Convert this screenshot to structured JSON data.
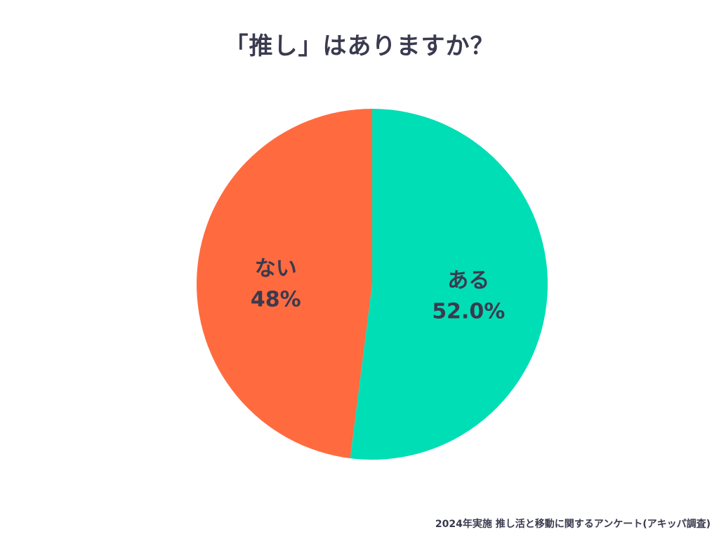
{
  "chart_data": {
    "type": "pie",
    "title": "「推し」はありますか？",
    "slices": [
      {
        "label": "ある",
        "value": 52.0,
        "display_value": "52.0%",
        "color": "#00DEB5"
      },
      {
        "label": "ない",
        "value": 48.0,
        "display_value": "48%",
        "color": "#FF6B3F"
      }
    ],
    "start_angle_deg": 0,
    "direction": "clockwise",
    "legend": "none"
  },
  "source_note": "2024年実施 推し活と移動に関するアンケート(アキッパ調査)"
}
